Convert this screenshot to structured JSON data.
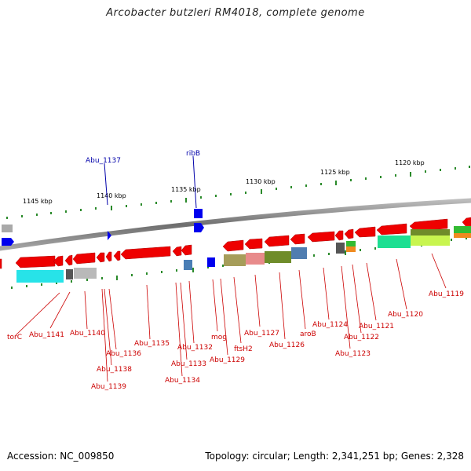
{
  "title": "Arcobacter butzleri RM4018, complete genome",
  "footer": {
    "accession": "Accession: NC_009850",
    "summary": "Topology: circular; Length: 2,341,251 bp; Genes: 2,328"
  },
  "colors": {
    "backbone": "#7a7a7a",
    "forward_gene": "#0000dd",
    "reverse_gene": "#ee0000",
    "label_blue": "#0000aa",
    "label_red": "#cc0000",
    "tick": "#228822"
  },
  "scale": {
    "tick_labels": [
      "1145 kbp",
      "1140 kbp",
      "1135 kbp",
      "1130 kbp",
      "1125 kbp",
      "1120 kbp"
    ]
  },
  "labels_top": [
    "Abu_1137",
    "ribB"
  ],
  "labels_bottom": [
    "torC",
    "Abu_1141",
    "Abu_1140",
    "Abu_1136",
    "Abu_1138",
    "Abu_1139",
    "Abu_1135",
    "Abu_1134",
    "Abu_1133",
    "Abu_1132",
    "mog",
    "Abu_1129",
    "ftsH2",
    "Abu_1127",
    "Abu_1126",
    "aroB",
    "Abu_1124",
    "Abu_1123",
    "Abu_1122",
    "Abu_1121",
    "Abu_1120",
    "Abu_1119"
  ]
}
